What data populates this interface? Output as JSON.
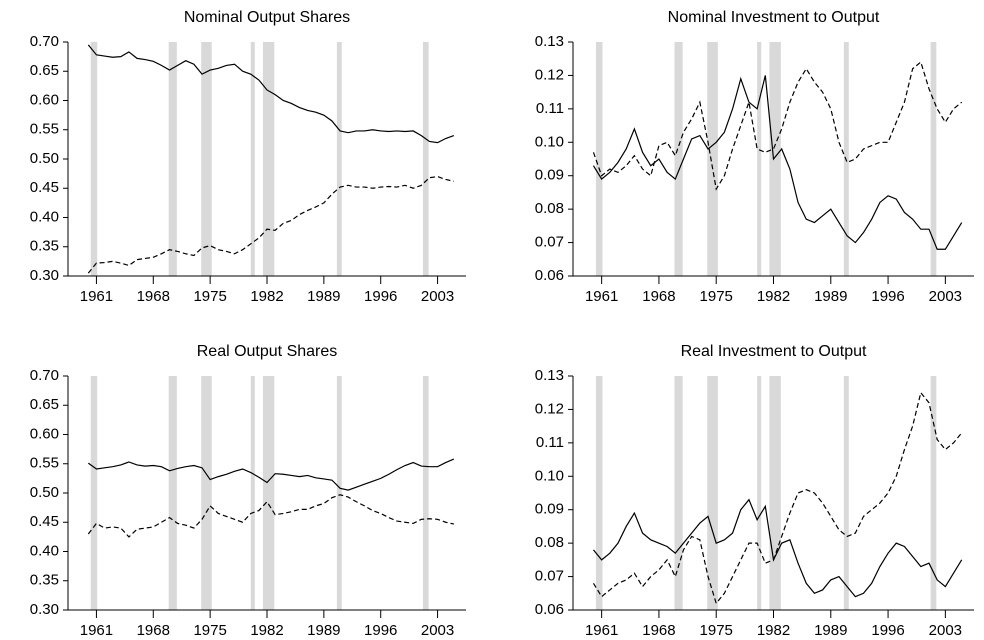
{
  "chart_data": [
    {
      "type": "line",
      "title": "Nominal Output Shares",
      "x": [
        1960,
        1961,
        1962,
        1963,
        1964,
        1965,
        1966,
        1967,
        1968,
        1969,
        1970,
        1971,
        1972,
        1973,
        1974,
        1975,
        1976,
        1977,
        1978,
        1979,
        1980,
        1981,
        1982,
        1983,
        1984,
        1985,
        1986,
        1987,
        1988,
        1989,
        1990,
        1991,
        1992,
        1993,
        1994,
        1995,
        1996,
        1997,
        1998,
        1999,
        2000,
        2001,
        2002,
        2003,
        2004,
        2005
      ],
      "series": [
        {
          "style": "solid",
          "color": "#000000",
          "values": [
            0.695,
            0.678,
            0.676,
            0.674,
            0.675,
            0.683,
            0.672,
            0.67,
            0.667,
            0.66,
            0.652,
            0.66,
            0.668,
            0.662,
            0.645,
            0.652,
            0.655,
            0.66,
            0.662,
            0.65,
            0.645,
            0.635,
            0.618,
            0.61,
            0.6,
            0.595,
            0.588,
            0.583,
            0.58,
            0.575,
            0.565,
            0.548,
            0.545,
            0.548,
            0.548,
            0.55,
            0.548,
            0.547,
            0.548,
            0.547,
            0.548,
            0.54,
            0.53,
            0.528,
            0.535,
            0.54
          ]
        },
        {
          "style": "dashed",
          "color": "#000000",
          "values": [
            0.305,
            0.322,
            0.323,
            0.325,
            0.322,
            0.318,
            0.328,
            0.33,
            0.332,
            0.338,
            0.345,
            0.342,
            0.338,
            0.335,
            0.348,
            0.352,
            0.345,
            0.342,
            0.338,
            0.345,
            0.355,
            0.365,
            0.38,
            0.378,
            0.39,
            0.395,
            0.405,
            0.412,
            0.418,
            0.425,
            0.44,
            0.452,
            0.455,
            0.452,
            0.452,
            0.45,
            0.452,
            0.453,
            0.452,
            0.455,
            0.45,
            0.455,
            0.468,
            0.47,
            0.465,
            0.462
          ]
        }
      ],
      "shading": [
        [
          1960.3,
          1961.1
        ],
        [
          1969.9,
          1970.9
        ],
        [
          1973.9,
          1975.2
        ],
        [
          1980.0,
          1980.5
        ],
        [
          1981.5,
          1982.9
        ],
        [
          1990.6,
          1991.2
        ],
        [
          2001.2,
          2001.9
        ]
      ],
      "shading_color": "#d9d9d9",
      "xlim": [
        1957.5,
        2006.5
      ],
      "xticks": [
        1961,
        1968,
        1975,
        1982,
        1989,
        1996,
        2003
      ],
      "ylim": [
        0.3,
        0.7
      ],
      "yticks": [
        {
          "value": 0.3,
          "label": "0.30"
        },
        0.35,
        {
          "value": 0.4,
          "label": "0.40"
        },
        0.45,
        {
          "value": 0.5,
          "label": "0.50"
        },
        0.55,
        {
          "value": 0.6,
          "label": "0.60"
        },
        0.65,
        {
          "value": 0.7,
          "label": "0.70"
        }
      ]
    },
    {
      "type": "line",
      "title": "Nominal Investment to Output",
      "x": [
        1960,
        1961,
        1962,
        1963,
        1964,
        1965,
        1966,
        1967,
        1968,
        1969,
        1970,
        1971,
        1972,
        1973,
        1974,
        1975,
        1976,
        1977,
        1978,
        1979,
        1980,
        1981,
        1982,
        1983,
        1984,
        1985,
        1986,
        1987,
        1988,
        1989,
        1990,
        1991,
        1992,
        1993,
        1994,
        1995,
        1996,
        1997,
        1998,
        1999,
        2000,
        2001,
        2002,
        2003,
        2004,
        2005
      ],
      "series": [
        {
          "style": "solid",
          "color": "#000000",
          "values": [
            0.093,
            0.089,
            0.091,
            0.094,
            0.098,
            0.104,
            0.097,
            0.093,
            0.095,
            0.091,
            0.089,
            0.095,
            0.101,
            0.102,
            0.098,
            0.1,
            0.103,
            0.11,
            0.119,
            0.112,
            0.11,
            0.12,
            0.095,
            0.098,
            0.092,
            0.082,
            0.077,
            0.076,
            0.078,
            0.08,
            0.076,
            0.072,
            0.07,
            0.073,
            0.077,
            0.082,
            0.084,
            0.083,
            0.079,
            0.077,
            0.074,
            0.074,
            0.068,
            0.068,
            0.072,
            0.076
          ]
        },
        {
          "style": "dashed",
          "color": "#000000",
          "values": [
            0.097,
            0.09,
            0.092,
            0.091,
            0.093,
            0.096,
            0.092,
            0.09,
            0.099,
            0.1,
            0.096,
            0.103,
            0.107,
            0.112,
            0.1,
            0.086,
            0.09,
            0.098,
            0.105,
            0.112,
            0.098,
            0.097,
            0.098,
            0.104,
            0.112,
            0.118,
            0.122,
            0.118,
            0.115,
            0.11,
            0.1,
            0.094,
            0.095,
            0.098,
            0.099,
            0.1,
            0.1,
            0.106,
            0.112,
            0.122,
            0.124,
            0.116,
            0.11,
            0.106,
            0.11,
            0.112
          ]
        }
      ],
      "shading": [
        [
          1960.3,
          1961.1
        ],
        [
          1969.9,
          1970.9
        ],
        [
          1973.9,
          1975.2
        ],
        [
          1980.0,
          1980.5
        ],
        [
          1981.5,
          1982.9
        ],
        [
          1990.6,
          1991.2
        ],
        [
          2001.2,
          2001.9
        ]
      ],
      "shading_color": "#d9d9d9",
      "xlim": [
        1957.5,
        2006.5
      ],
      "xticks": [
        1961,
        1968,
        1975,
        1982,
        1989,
        1996,
        2003
      ],
      "ylim": [
        0.06,
        0.13
      ],
      "yticks": [
        0.06,
        0.07,
        0.08,
        0.09,
        {
          "value": 0.1,
          "label": "0.10"
        },
        0.11,
        0.12,
        0.13
      ]
    },
    {
      "type": "line",
      "title": "Real Output Shares",
      "x": [
        1960,
        1961,
        1962,
        1963,
        1964,
        1965,
        1966,
        1967,
        1968,
        1969,
        1970,
        1971,
        1972,
        1973,
        1974,
        1975,
        1976,
        1977,
        1978,
        1979,
        1980,
        1981,
        1982,
        1983,
        1984,
        1985,
        1986,
        1987,
        1988,
        1989,
        1990,
        1991,
        1992,
        1993,
        1994,
        1995,
        1996,
        1997,
        1998,
        1999,
        2000,
        2001,
        2002,
        2003,
        2004,
        2005
      ],
      "series": [
        {
          "style": "solid",
          "color": "#000000",
          "values": [
            0.551,
            0.541,
            0.543,
            0.545,
            0.548,
            0.553,
            0.548,
            0.546,
            0.547,
            0.545,
            0.538,
            0.542,
            0.545,
            0.547,
            0.543,
            0.523,
            0.528,
            0.532,
            0.537,
            0.541,
            0.535,
            0.527,
            0.518,
            0.533,
            0.532,
            0.53,
            0.528,
            0.53,
            0.526,
            0.524,
            0.522,
            0.508,
            0.505,
            0.51,
            0.515,
            0.52,
            0.525,
            0.532,
            0.54,
            0.547,
            0.552,
            0.546,
            0.545,
            0.545,
            0.552,
            0.558
          ]
        },
        {
          "style": "dashed",
          "color": "#000000",
          "values": [
            0.43,
            0.448,
            0.44,
            0.442,
            0.44,
            0.425,
            0.438,
            0.44,
            0.442,
            0.45,
            0.458,
            0.448,
            0.445,
            0.44,
            0.455,
            0.478,
            0.465,
            0.46,
            0.455,
            0.45,
            0.465,
            0.47,
            0.485,
            0.463,
            0.465,
            0.468,
            0.472,
            0.472,
            0.478,
            0.482,
            0.492,
            0.497,
            0.493,
            0.485,
            0.478,
            0.47,
            0.465,
            0.458,
            0.452,
            0.45,
            0.448,
            0.455,
            0.456,
            0.455,
            0.45,
            0.447
          ]
        }
      ],
      "shading": [
        [
          1960.3,
          1961.1
        ],
        [
          1969.9,
          1970.9
        ],
        [
          1973.9,
          1975.2
        ],
        [
          1980.0,
          1980.5
        ],
        [
          1981.5,
          1982.9
        ],
        [
          1990.6,
          1991.2
        ],
        [
          2001.2,
          2001.9
        ]
      ],
      "shading_color": "#d9d9d9",
      "xlim": [
        1957.5,
        2006.5
      ],
      "xticks": [
        1961,
        1968,
        1975,
        1982,
        1989,
        1996,
        2003
      ],
      "ylim": [
        0.3,
        0.7
      ],
      "yticks": [
        {
          "value": 0.3,
          "label": "0.30"
        },
        0.35,
        {
          "value": 0.4,
          "label": "0.40"
        },
        0.45,
        {
          "value": 0.5,
          "label": "0.50"
        },
        0.55,
        {
          "value": 0.6,
          "label": "0.60"
        },
        0.65,
        {
          "value": 0.7,
          "label": "0.70"
        }
      ]
    },
    {
      "type": "line",
      "title": "Real Investment to Output",
      "x": [
        1960,
        1961,
        1962,
        1963,
        1964,
        1965,
        1966,
        1967,
        1968,
        1969,
        1970,
        1971,
        1972,
        1973,
        1974,
        1975,
        1976,
        1977,
        1978,
        1979,
        1980,
        1981,
        1982,
        1983,
        1984,
        1985,
        1986,
        1987,
        1988,
        1989,
        1990,
        1991,
        1992,
        1993,
        1994,
        1995,
        1996,
        1997,
        1998,
        1999,
        2000,
        2001,
        2002,
        2003,
        2004,
        2005
      ],
      "series": [
        {
          "style": "solid",
          "color": "#000000",
          "values": [
            0.078,
            0.075,
            0.077,
            0.08,
            0.085,
            0.089,
            0.083,
            0.081,
            0.08,
            0.079,
            0.077,
            0.08,
            0.083,
            0.086,
            0.088,
            0.08,
            0.081,
            0.083,
            0.09,
            0.093,
            0.087,
            0.091,
            0.075,
            0.08,
            0.081,
            0.074,
            0.068,
            0.065,
            0.066,
            0.069,
            0.07,
            0.067,
            0.064,
            0.065,
            0.068,
            0.073,
            0.077,
            0.08,
            0.079,
            0.076,
            0.073,
            0.074,
            0.069,
            0.067,
            0.071,
            0.075
          ]
        },
        {
          "style": "dashed",
          "color": "#000000",
          "values": [
            0.068,
            0.064,
            0.066,
            0.068,
            0.069,
            0.071,
            0.067,
            0.07,
            0.072,
            0.075,
            0.07,
            0.078,
            0.082,
            0.081,
            0.07,
            0.062,
            0.065,
            0.07,
            0.075,
            0.08,
            0.08,
            0.074,
            0.075,
            0.082,
            0.089,
            0.095,
            0.096,
            0.095,
            0.092,
            0.088,
            0.084,
            0.082,
            0.083,
            0.088,
            0.09,
            0.092,
            0.095,
            0.1,
            0.108,
            0.115,
            0.125,
            0.122,
            0.111,
            0.108,
            0.11,
            0.113
          ]
        }
      ],
      "shading": [
        [
          1960.3,
          1961.1
        ],
        [
          1969.9,
          1970.9
        ],
        [
          1973.9,
          1975.2
        ],
        [
          1980.0,
          1980.5
        ],
        [
          1981.5,
          1982.9
        ],
        [
          1990.6,
          1991.2
        ],
        [
          2001.2,
          2001.9
        ]
      ],
      "shading_color": "#d9d9d9",
      "xlim": [
        1957.5,
        2006.5
      ],
      "xticks": [
        1961,
        1968,
        1975,
        1982,
        1989,
        1996,
        2003
      ],
      "ylim": [
        0.06,
        0.13
      ],
      "yticks": [
        0.06,
        0.07,
        0.08,
        0.09,
        {
          "value": 0.1,
          "label": "0.10"
        },
        0.11,
        0.12,
        0.13
      ]
    }
  ]
}
